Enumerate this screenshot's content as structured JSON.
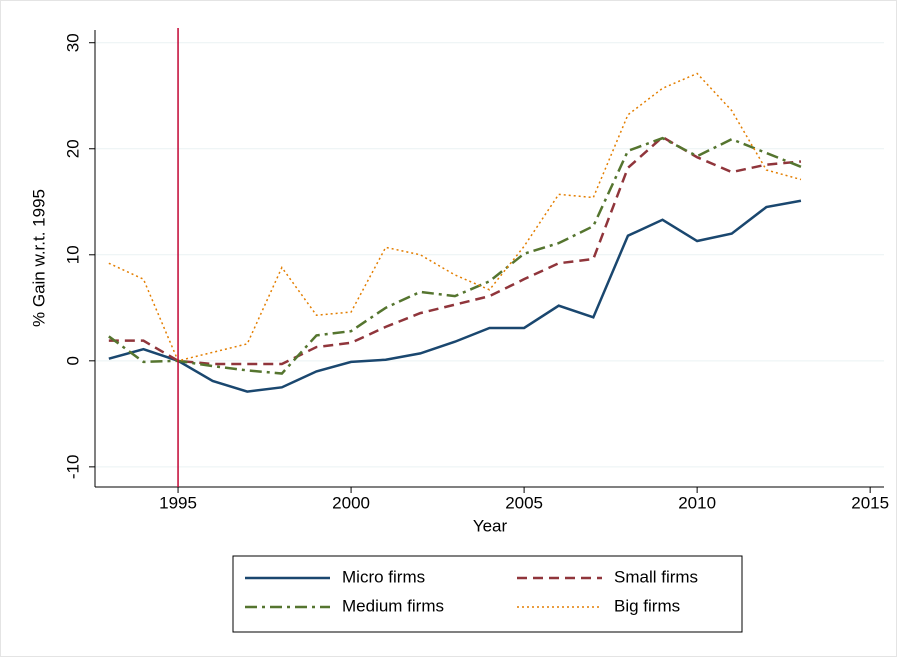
{
  "chart_data": {
    "type": "line",
    "x_label": "Year",
    "y_label": "% Gain w.r.t. 1995",
    "x": [
      1993,
      1994,
      1995,
      1996,
      1997,
      1998,
      1999,
      2000,
      2001,
      2002,
      2003,
      2004,
      2005,
      2006,
      2007,
      2008,
      2009,
      2010,
      2011,
      2012,
      2013
    ],
    "series": [
      {
        "name": "Micro firms",
        "color": "#1a476f",
        "dash": "solid",
        "values": [
          0.2,
          1.1,
          0,
          -1.9,
          -2.9,
          -2.5,
          -1.0,
          -0.1,
          0.1,
          0.7,
          1.8,
          3.1,
          3.1,
          5.2,
          4.1,
          11.8,
          13.3,
          11.3,
          12.0,
          14.5,
          15.1
        ]
      },
      {
        "name": "Small firms",
        "color": "#90353b",
        "dash": "dash",
        "values": [
          1.9,
          1.9,
          0,
          -0.3,
          -0.3,
          -0.3,
          1.3,
          1.7,
          3.2,
          4.5,
          5.3,
          6.1,
          7.7,
          9.2,
          9.6,
          18.2,
          21.1,
          19.2,
          17.8,
          18.5,
          18.8
        ]
      },
      {
        "name": "Medium firms",
        "color": "#55752f",
        "dash": "dashdot",
        "values": [
          2.3,
          -0.1,
          0,
          -0.5,
          -0.9,
          -1.2,
          2.4,
          2.8,
          5.0,
          6.5,
          6.1,
          7.5,
          10.1,
          11.1,
          12.7,
          19.8,
          21.0,
          19.3,
          20.9,
          19.6,
          18.3
        ]
      },
      {
        "name": "Big firms",
        "color": "#e37e00",
        "dash": "dot",
        "values": [
          9.2,
          7.7,
          0,
          0.8,
          1.6,
          8.8,
          4.3,
          4.6,
          10.7,
          10.0,
          8.1,
          6.7,
          10.8,
          15.7,
          15.4,
          23.2,
          25.7,
          27.1,
          23.6,
          18.0,
          17.1
        ]
      }
    ],
    "xlim": [
      1992.6,
      2015.4
    ],
    "xticks": [
      1995,
      2000,
      2005,
      2010,
      2015
    ],
    "ylim": [
      -11.9,
      31.2
    ],
    "yticks": [
      -10,
      0,
      10,
      20,
      30
    ],
    "grid": true,
    "xline": 1995,
    "xline_color": "#c10534",
    "legend": "bottom"
  }
}
